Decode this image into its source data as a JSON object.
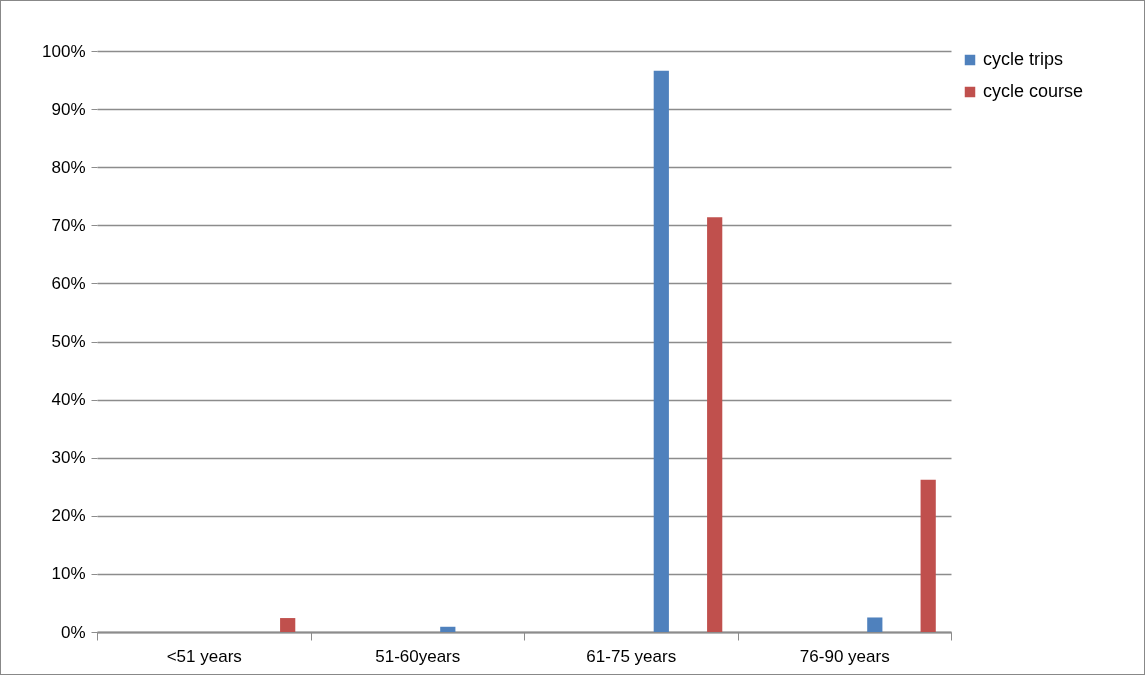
{
  "chart_data": {
    "type": "bar",
    "categories": [
      "<51 years",
      "51-60years",
      "61-75 years",
      "76-90 years"
    ],
    "series": [
      {
        "name": "cycle trips",
        "color": "#4f81bd",
        "values": [
          0,
          0.9,
          96.6,
          2.5
        ]
      },
      {
        "name": "cycle course",
        "color": "#c0504d",
        "values": [
          2.4,
          0,
          71.4,
          26.2
        ]
      }
    ],
    "ylim": [
      0,
      100
    ],
    "yticks": [
      {
        "value": 0,
        "label": "0%"
      },
      {
        "value": 10,
        "label": "10%"
      },
      {
        "value": 20,
        "label": "20%"
      },
      {
        "value": 30,
        "label": "30%"
      },
      {
        "value": 40,
        "label": "40%"
      },
      {
        "value": 50,
        "label": "50%"
      },
      {
        "value": 60,
        "label": "60%"
      },
      {
        "value": 70,
        "label": "70%"
      },
      {
        "value": 80,
        "label": "80%"
      },
      {
        "value": 90,
        "label": "90%"
      },
      {
        "value": 100,
        "label": "100%"
      }
    ],
    "grid": "y",
    "legend": "right"
  }
}
